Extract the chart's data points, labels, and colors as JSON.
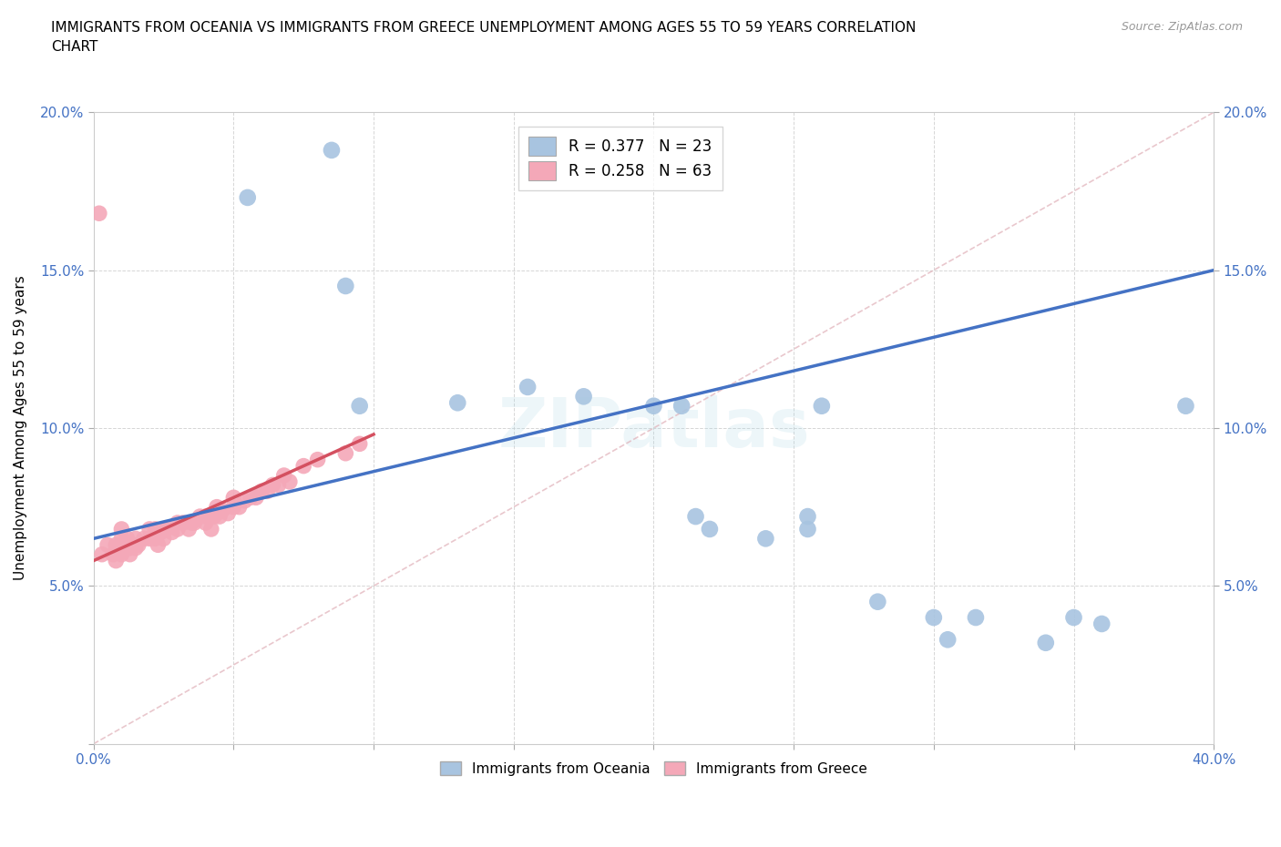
{
  "title": "IMMIGRANTS FROM OCEANIA VS IMMIGRANTS FROM GREECE UNEMPLOYMENT AMONG AGES 55 TO 59 YEARS CORRELATION\nCHART",
  "source": "Source: ZipAtlas.com",
  "ylabel": "Unemployment Among Ages 55 to 59 years",
  "xlim": [
    0.0,
    0.4
  ],
  "ylim": [
    0.0,
    0.2
  ],
  "watermark": "ZIPatlas",
  "legend_r1": "R = 0.377",
  "legend_n1": "N = 23",
  "legend_r2": "R = 0.258",
  "legend_n2": "N = 63",
  "oceania_color": "#a8c4e0",
  "greece_color": "#f4a8b8",
  "trendline_oceania_color": "#4472c4",
  "trendline_greece_color": "#d45060",
  "diag_color": "#e0b0b8",
  "oceania_x": [
    0.055,
    0.085,
    0.09,
    0.095,
    0.13,
    0.155,
    0.175,
    0.2,
    0.21,
    0.215,
    0.22,
    0.24,
    0.255,
    0.255,
    0.26,
    0.28,
    0.3,
    0.305,
    0.315,
    0.34,
    0.35,
    0.36,
    0.39
  ],
  "oceania_y": [
    0.173,
    0.188,
    0.145,
    0.107,
    0.108,
    0.113,
    0.11,
    0.107,
    0.107,
    0.072,
    0.068,
    0.065,
    0.068,
    0.072,
    0.107,
    0.045,
    0.04,
    0.033,
    0.04,
    0.032,
    0.04,
    0.038,
    0.107
  ],
  "greece_x": [
    0.002,
    0.003,
    0.005,
    0.007,
    0.008,
    0.008,
    0.009,
    0.01,
    0.01,
    0.01,
    0.01,
    0.011,
    0.012,
    0.012,
    0.013,
    0.013,
    0.014,
    0.015,
    0.015,
    0.016,
    0.018,
    0.02,
    0.02,
    0.022,
    0.022,
    0.023,
    0.024,
    0.025,
    0.025,
    0.026,
    0.028,
    0.03,
    0.03,
    0.032,
    0.034,
    0.035,
    0.036,
    0.038,
    0.04,
    0.04,
    0.042,
    0.043,
    0.044,
    0.044,
    0.045,
    0.046,
    0.048,
    0.05,
    0.05,
    0.052,
    0.054,
    0.056,
    0.058,
    0.06,
    0.062,
    0.064,
    0.066,
    0.068,
    0.07,
    0.075,
    0.08,
    0.09,
    0.095
  ],
  "greece_y": [
    0.168,
    0.06,
    0.063,
    0.06,
    0.058,
    0.063,
    0.062,
    0.06,
    0.063,
    0.065,
    0.068,
    0.062,
    0.063,
    0.065,
    0.06,
    0.062,
    0.063,
    0.065,
    0.062,
    0.063,
    0.065,
    0.065,
    0.068,
    0.068,
    0.065,
    0.063,
    0.067,
    0.065,
    0.068,
    0.068,
    0.067,
    0.068,
    0.07,
    0.07,
    0.068,
    0.07,
    0.07,
    0.072,
    0.072,
    0.07,
    0.068,
    0.072,
    0.073,
    0.075,
    0.072,
    0.074,
    0.073,
    0.075,
    0.078,
    0.075,
    0.077,
    0.078,
    0.078,
    0.08,
    0.08,
    0.082,
    0.082,
    0.085,
    0.083,
    0.088,
    0.09,
    0.092,
    0.095
  ],
  "oceania_trend_x": [
    0.0,
    0.4
  ],
  "oceania_trend_y": [
    0.065,
    0.15
  ],
  "greece_trend_x": [
    0.0,
    0.1
  ],
  "greece_trend_y": [
    0.058,
    0.098
  ],
  "diag_trend_x": [
    0.0,
    0.4
  ],
  "diag_trend_y": [
    0.0,
    0.2
  ]
}
